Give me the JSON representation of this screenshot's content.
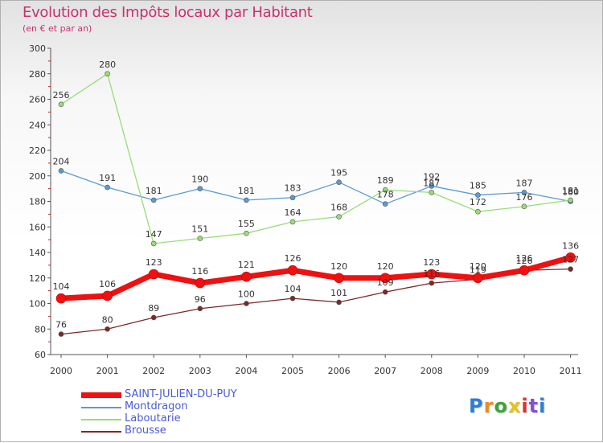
{
  "title": "Evolution des Impôts locaux par Habitant",
  "subtitle": "(en € et par an)",
  "logo": {
    "text": "Proxiti",
    "colors": [
      "#2a7fd4",
      "#f08a1c",
      "#3aa63a",
      "#e8c21a",
      "#e03030",
      "#8a4fd0",
      "#2a7fd4"
    ]
  },
  "chart_data": {
    "type": "line",
    "x": [
      "2000",
      "2001",
      "2002",
      "2003",
      "2004",
      "2005",
      "2006",
      "2007",
      "2008",
      "2009",
      "2010",
      "2011"
    ],
    "ylim": [
      60,
      300
    ],
    "yticks": [
      "60",
      "80",
      "100",
      "120",
      "140",
      "160",
      "180",
      "200",
      "220",
      "240",
      "260",
      "280",
      "300"
    ],
    "grid": false,
    "legend_position": "bottom-left",
    "series": [
      {
        "name": "SAINT-JULIEN-DU-PUY",
        "color": "#ee1111",
        "values": [
          104,
          106,
          123,
          116,
          121,
          126,
          120,
          120,
          123,
          120,
          126,
          136
        ],
        "labels": [
          "104",
          "106",
          "123",
          "116",
          "121",
          "126",
          "120",
          "120",
          "123",
          "120",
          "126",
          "136"
        ]
      },
      {
        "name": "Montdragon",
        "color": "#5b9bd0",
        "values": [
          204,
          191,
          181,
          190,
          181,
          183,
          195,
          178,
          192,
          185,
          187,
          180
        ],
        "labels": [
          "204",
          "191",
          "181",
          "190",
          "181",
          "183",
          "195",
          "178",
          "192",
          "185",
          "187",
          "180"
        ]
      },
      {
        "name": "Laboutarie",
        "color": "#99dd77",
        "values": [
          256,
          280,
          147,
          151,
          155,
          164,
          168,
          189,
          187,
          172,
          176,
          181
        ],
        "labels": [
          "256",
          "280",
          "147",
          "151",
          "155",
          "164",
          "168",
          "189",
          "187",
          "172",
          "176",
          "181"
        ]
      },
      {
        "name": "Brousse",
        "color": "#7a2a2a",
        "values": [
          76,
          80,
          89,
          96,
          100,
          104,
          101,
          109,
          116,
          119,
          126,
          127
        ],
        "labels": [
          "76",
          "80",
          "89",
          "96",
          "100",
          "104",
          "101",
          "109",
          "116",
          "119",
          "126",
          "127"
        ]
      }
    ]
  }
}
